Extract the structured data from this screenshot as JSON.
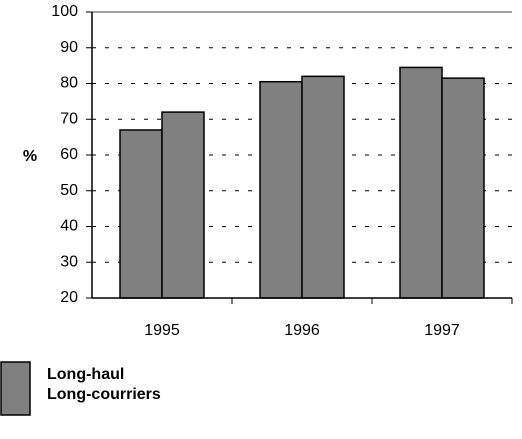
{
  "chart_data": {
    "type": "bar",
    "y_label": "%",
    "categories": [
      "1995",
      "1996",
      "1997"
    ],
    "series": [
      {
        "color": "#808080",
        "values": [
          67,
          80.5,
          84.5
        ]
      },
      {
        "color": "#808080",
        "values": [
          72,
          82,
          81.5
        ]
      }
    ],
    "legend": {
      "color": "#808080",
      "lines": [
        "Long-haul",
        "Long-courriers"
      ]
    },
    "ylim": [
      20,
      100
    ],
    "yticks": [
      20,
      30,
      40,
      50,
      60,
      70,
      80,
      90,
      100
    ],
    "grid": true
  }
}
